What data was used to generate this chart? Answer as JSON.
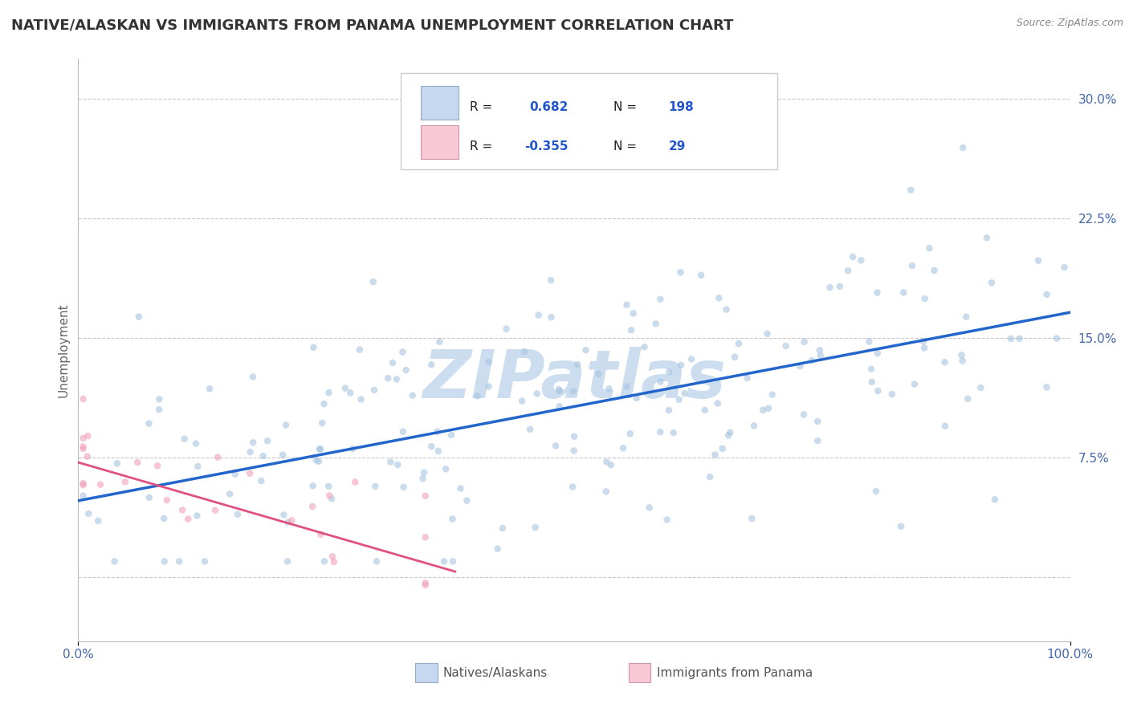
{
  "title": "NATIVE/ALASKAN VS IMMIGRANTS FROM PANAMA UNEMPLOYMENT CORRELATION CHART",
  "source": "Source: ZipAtlas.com",
  "ylabel": "Unemployment",
  "ytick_vals": [
    0.0,
    0.075,
    0.15,
    0.225,
    0.3
  ],
  "ytick_labels": [
    "",
    "7.5%",
    "15.0%",
    "22.5%",
    "30.0%"
  ],
  "xlim": [
    0.0,
    1.0
  ],
  "ylim": [
    -0.04,
    0.325
  ],
  "blue_dot_color": "#a8c4e0",
  "pink_dot_color": "#f0a0b8",
  "blue_line_color": "#2266cc",
  "pink_line_color": "#e05080",
  "blue_fill_color": "#c5d8f0",
  "pink_fill_color": "#f8c8d4",
  "grid_color": "#c8c8c8",
  "background_color": "#ffffff",
  "watermark": "ZIPatlas",
  "watermark_color": "#ccddf0",
  "title_color": "#333333",
  "title_fontsize": 13,
  "axis_label_color": "#4466aa",
  "legend_text_color": "#2255cc",
  "dot_size": 38,
  "dot_alpha": 0.6,
  "blue_regression_slope": 0.118,
  "blue_regression_intercept": 0.048,
  "pink_regression_slope": -0.18,
  "pink_regression_intercept": 0.072,
  "seed": 42
}
